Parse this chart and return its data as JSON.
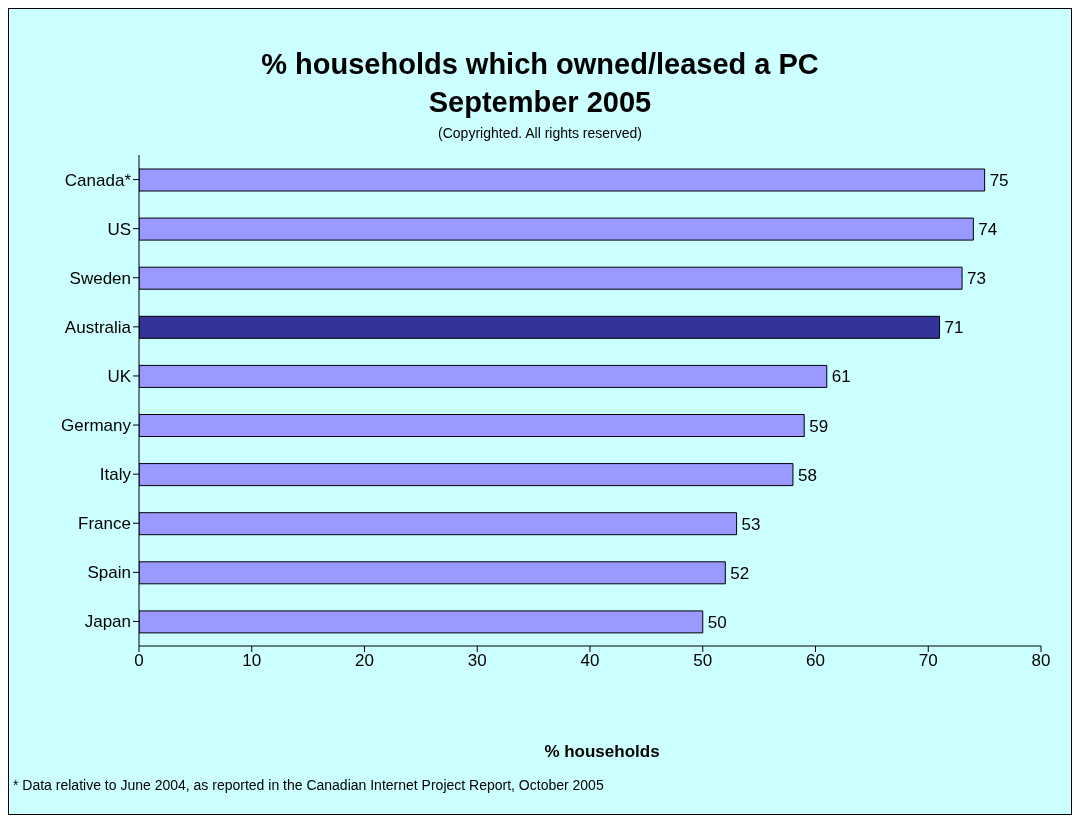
{
  "chart_data": {
    "type": "bar",
    "orientation": "horizontal",
    "title": "% households which owned/leased a PC\nSeptember 2005",
    "subtitle": "(Copyrighted. All rights reserved)",
    "xlabel": "% households",
    "annotations": [
      "* Data relative to June 2004, as reported in the Canadian Internet Project Report, October 2005"
    ],
    "categories": [
      "Canada*",
      "US",
      "Sweden",
      "Australia",
      "UK",
      "Germany",
      "Italy",
      "France",
      "Spain",
      "Japan"
    ],
    "values": [
      75,
      74,
      73,
      71,
      61,
      59,
      58,
      53,
      52,
      50
    ],
    "colors": [
      "#9999ff",
      "#9999ff",
      "#9999ff",
      "#333399",
      "#9999ff",
      "#9999ff",
      "#9999ff",
      "#9999ff",
      "#9999ff",
      "#9999ff"
    ],
    "xlim": [
      0,
      80
    ],
    "xticks": [
      0,
      10,
      20,
      30,
      40,
      50,
      60,
      70,
      80
    ],
    "data_labels": true
  }
}
